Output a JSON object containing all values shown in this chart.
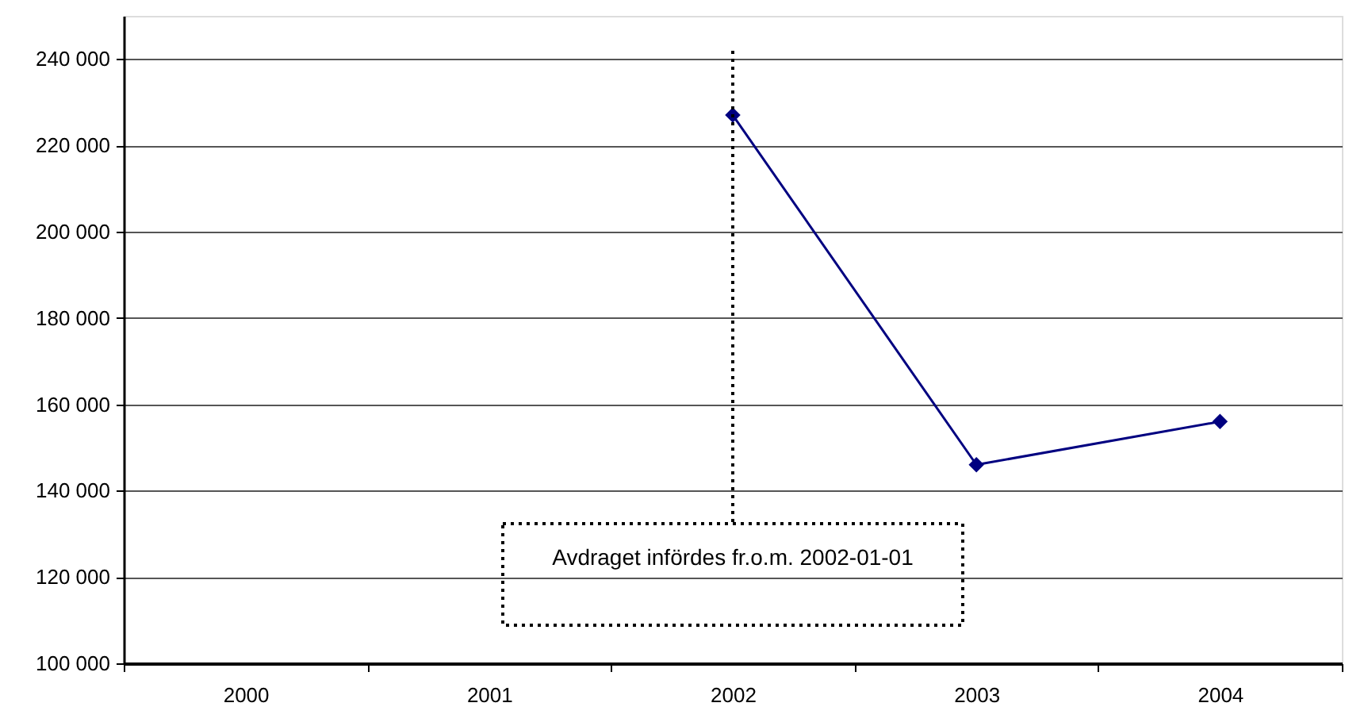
{
  "chart_data": {
    "type": "line",
    "categories": [
      "2000",
      "2001",
      "2002",
      "2003",
      "2004"
    ],
    "series": [
      {
        "color": "#000080",
        "values": [
          null,
          null,
          227000,
          146000,
          156000
        ]
      }
    ],
    "ylim": [
      100000,
      250000
    ],
    "yticks": [
      {
        "value": 100000,
        "label": "100 000"
      },
      {
        "value": 120000,
        "label": "120 000"
      },
      {
        "value": 140000,
        "label": "140 000"
      },
      {
        "value": 160000,
        "label": "160 000"
      },
      {
        "value": 180000,
        "label": "180 000"
      },
      {
        "value": 200000,
        "label": "200 000"
      },
      {
        "value": 220000,
        "label": "220 000"
      },
      {
        "value": 240000,
        "label": "240 000"
      }
    ],
    "grid": "y",
    "marker": "diamond",
    "line_style": "solid",
    "ref_lines": [
      {
        "axis": "x",
        "value": "2002",
        "label": "Avdraget infördes fr.o.m. 2002-01-01",
        "color": "#000000",
        "line_style": "dotted"
      }
    ]
  }
}
